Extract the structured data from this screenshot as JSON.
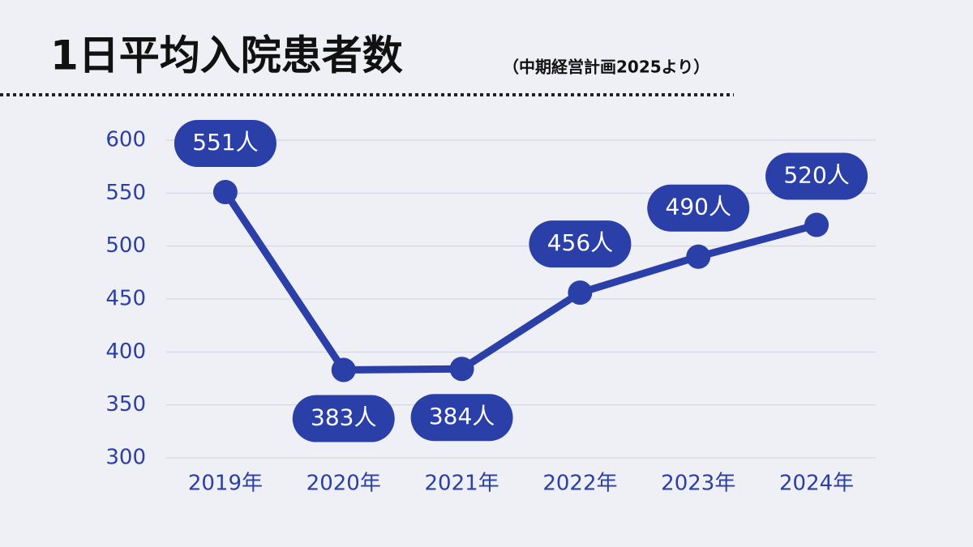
{
  "chart_data": {
    "type": "line",
    "title": "1日平均入院患者数",
    "subtitle": "（中期経営計画2025より）",
    "categories": [
      "2019年",
      "2020年",
      "2021年",
      "2022年",
      "2023年",
      "2024年"
    ],
    "values": [
      551,
      383,
      384,
      456,
      490,
      520
    ],
    "value_labels": [
      "551人",
      "383人",
      "384人",
      "456人",
      "490人",
      "520人"
    ],
    "color": "#2b3fa8",
    "ylim": [
      300,
      600
    ],
    "yticks": [
      300,
      350,
      400,
      450,
      500,
      550,
      600
    ],
    "grid": true
  }
}
